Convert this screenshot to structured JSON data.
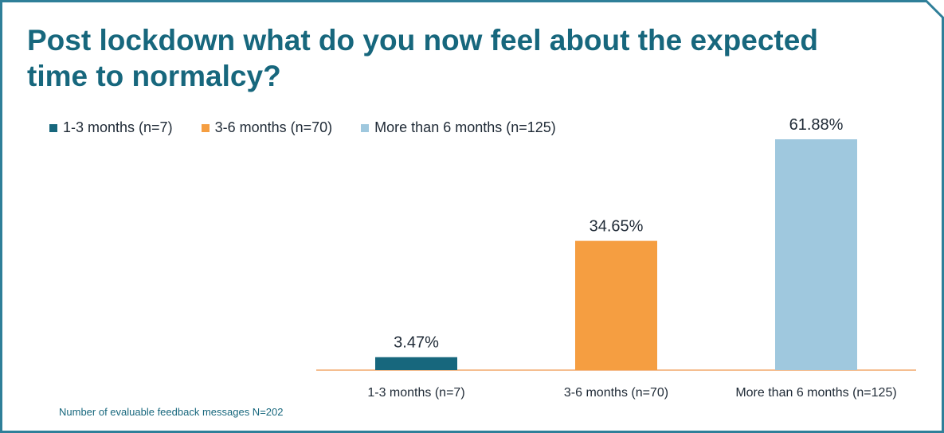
{
  "title": "Post lockdown what do you now feel about the expected time to normalcy?",
  "footnote": "Number of evaluable feedback messages N=202",
  "colors": {
    "frame": "#2f7f99",
    "title": "#17677d",
    "axis": "#f2a96b",
    "text": "#1f2a36"
  },
  "legend": [
    {
      "label": "1-3 months (n=7)",
      "color": "#17677d"
    },
    {
      "label": "3-6 months (n=70)",
      "color": "#f59e41"
    },
    {
      "label": "More than 6 months (n=125)",
      "color": "#9fc8de"
    }
  ],
  "chart_data": {
    "type": "bar",
    "title": "Post lockdown what do you now feel about the expected time to normalcy?",
    "categories": [
      "1-3 months (n=7)",
      "3-6 months (n=70)",
      "More than 6 months (n=125)"
    ],
    "values": [
      3.47,
      34.65,
      61.88
    ],
    "data_labels": [
      "3.47%",
      "34.65%",
      "61.88%"
    ],
    "colors": [
      "#17677d",
      "#f59e41",
      "#9fc8de"
    ],
    "unit": "%",
    "ylim": [
      0,
      61.88
    ],
    "grid": false,
    "legend_position": "top-left"
  }
}
